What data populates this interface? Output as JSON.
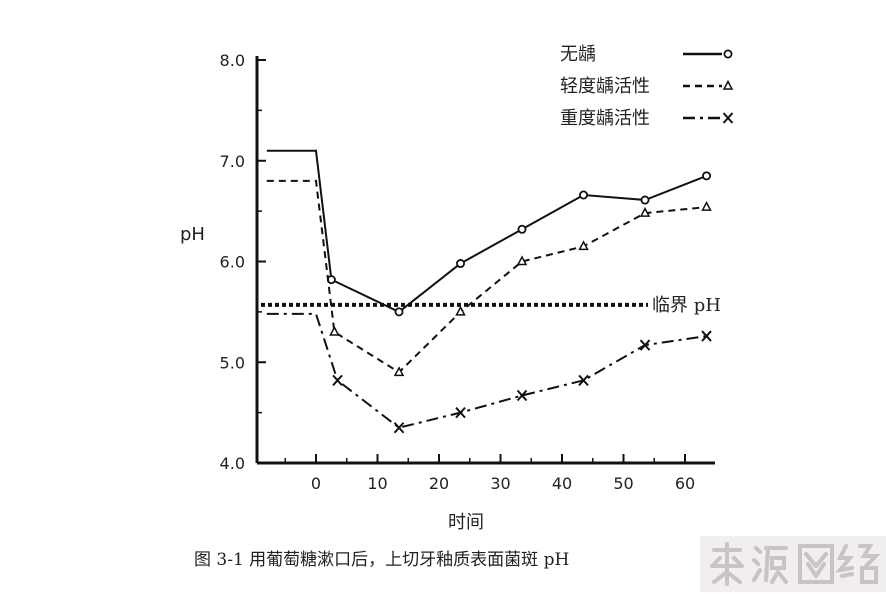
{
  "chart_data": {
    "type": "line",
    "title": "",
    "xlabel": "时间",
    "ylabel": "pH",
    "xlim": [
      -9,
      66
    ],
    "ylim": [
      4.0,
      8.0
    ],
    "xticks": [
      0,
      10,
      20,
      30,
      40,
      50,
      60
    ],
    "yticks": [
      4.0,
      5.0,
      6.0,
      7.0,
      8.0
    ],
    "xtick_labels": [
      "0",
      "10",
      "20",
      "30",
      "40",
      "50",
      "60"
    ],
    "ytick_labels": [
      "4.0",
      "5.0",
      "6.0",
      "7.0",
      "8.0"
    ],
    "grid": false,
    "legend_position": "top-right",
    "series": [
      {
        "name": "无龋",
        "marker": "circle",
        "dash": "solid",
        "x": [
          -8,
          0,
          2.5,
          13.5,
          23.5,
          33.5,
          43.5,
          53.5,
          63.5
        ],
        "y": [
          7.1,
          7.1,
          5.82,
          5.5,
          5.98,
          6.32,
          6.66,
          6.61,
          6.85
        ]
      },
      {
        "name": "轻度龋活性",
        "marker": "triangle",
        "dash": "dashed",
        "x": [
          -8,
          0,
          3,
          13.5,
          23.5,
          33.5,
          43.5,
          53.5,
          63.5
        ],
        "y": [
          6.8,
          6.8,
          5.3,
          4.9,
          5.5,
          6.0,
          6.15,
          6.48,
          6.54
        ]
      },
      {
        "name": "重度龋活性",
        "marker": "x",
        "dash": "dashdot",
        "x": [
          -8,
          0,
          3.5,
          13.5,
          23.5,
          33.5,
          43.5,
          53.5,
          63.5
        ],
        "y": [
          5.48,
          5.48,
          4.82,
          4.35,
          4.5,
          4.67,
          4.82,
          5.17,
          5.26
        ]
      }
    ],
    "reference_line": {
      "y": 5.57,
      "label": "临界 pH"
    },
    "caption": "图 3-1   用葡萄糖漱口后，上切牙釉质表面菌斑 pH"
  },
  "watermark": {
    "text": "来源网络",
    "color": "#c9c3c3"
  },
  "colors": {
    "line": "#111111",
    "text": "#222222",
    "background": "#ffffff"
  }
}
